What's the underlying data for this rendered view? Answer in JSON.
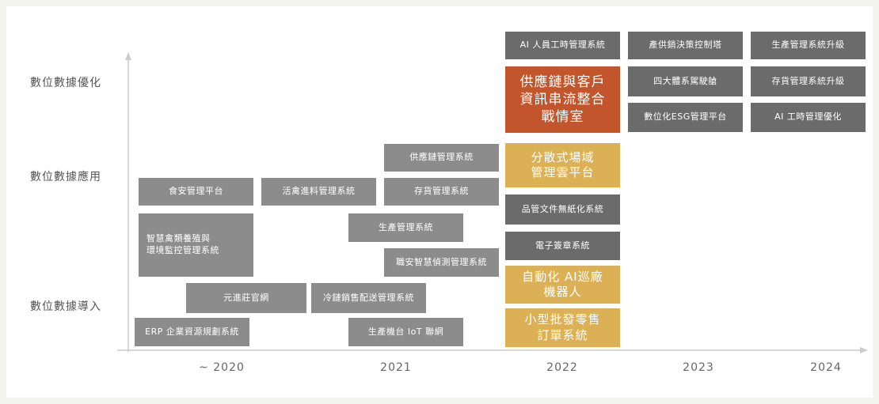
{
  "y_levels": [
    "數位數據優化",
    "數位數據應用",
    "數位數據導入"
  ],
  "x_labels": [
    "~ 2020",
    "2021",
    "2022",
    "2023",
    "2024"
  ],
  "items": {
    "shipin": "食安管理平台",
    "zhihui": "智慧禽類養殖與\n環境監控管理系統",
    "yuanjin": "元進莊官網",
    "erp": "ERP 企業資源規劃系統",
    "huoqin": "活禽進料管理系統",
    "lenglian": "冷鏈銷售配送管理系統",
    "shengchan_iot": "生產機台 IoT 聯網",
    "gongying2021": "供應鏈管理系統",
    "cunhuo2021": "存貨管理系統",
    "shengchan2021": "生產管理系統",
    "zhian": "職安智慧偵測管理系統",
    "ai_rengong": "AI 人員工時管理系統",
    "zhanqingshi": "供應鏈與客戶\n資訊串流整合\n戰情室",
    "fensanshi": "分散式場域\n管理雲平台",
    "pinguan": "品管文件無紙化系統",
    "dianzi": "電子簽章系統",
    "zidonghua": "自動化 AI巡廠\n機器人",
    "xiaoxing": "小型批發零售\n訂單系統",
    "chanxiao": "產供銷決策控制塔",
    "sida": "四大體系駕駛艙",
    "esg": "數位化ESG管理平台",
    "shengchan_up": "生產管理系統升級",
    "cunhuo_up": "存貨管理系統升級",
    "ai_youhua": "AI 工時管理優化"
  },
  "colors": {
    "gray": "#8c8c8c",
    "dark_gray": "#6b6b6b",
    "orange": "#c2552b",
    "gold": "#dcb155",
    "axis": "#cccccc"
  }
}
